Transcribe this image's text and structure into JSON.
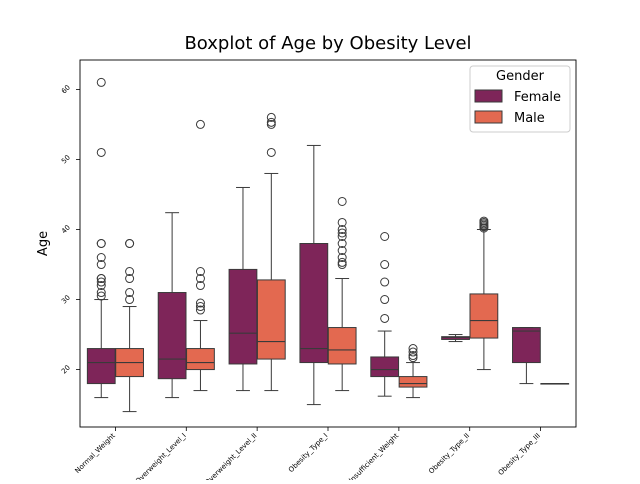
{
  "chart_data": {
    "type": "boxplot",
    "title": "Boxplot of Age by Obesity Level",
    "xlabel": "",
    "ylabel": "Age",
    "ylim": [
      11.8,
      64.2
    ],
    "yticks": [
      20,
      30,
      40,
      50,
      60
    ],
    "categories": [
      "Normal_Weight",
      "Overweight_Level_I",
      "Overweight_Level_II",
      "Obesity_Type_I",
      "Insufficient_Weight",
      "Obesity_Type_II",
      "Obesity_Type_III"
    ],
    "legend": {
      "title": "Gender",
      "placement": "top-right"
    },
    "series": [
      {
        "name": "Female",
        "color": "#7e2559",
        "boxes": [
          {
            "whislo": 16.0,
            "q1": 18.0,
            "med": 21.0,
            "q3": 23.0,
            "whishi": 30.0,
            "fliers": [
              61,
              51,
              38,
              38,
              36,
              35,
              33,
              33,
              32.5,
              32,
              31,
              30.5
            ]
          },
          {
            "whislo": 16.0,
            "q1": 18.7,
            "med": 21.5,
            "q3": 31.0,
            "whishi": 42.4,
            "fliers": []
          },
          {
            "whislo": 17.0,
            "q1": 20.8,
            "med": 25.2,
            "q3": 34.3,
            "whishi": 46.0,
            "fliers": []
          },
          {
            "whislo": 15.0,
            "q1": 21.0,
            "med": 23.0,
            "q3": 38.0,
            "whishi": 52.0,
            "fliers": []
          },
          {
            "whislo": 16.2,
            "q1": 19.0,
            "med": 20.0,
            "q3": 21.8,
            "whishi": 25.5,
            "fliers": [
              39,
              35,
              32.5,
              30,
              27.3
            ]
          },
          {
            "whislo": 24.0,
            "q1": 24.3,
            "med": 24.6,
            "q3": 24.7,
            "whishi": 25.0,
            "fliers": []
          },
          {
            "whislo": 18.0,
            "q1": 21.0,
            "med": 25.5,
            "q3": 26.0,
            "whishi": 26.0,
            "fliers": []
          }
        ]
      },
      {
        "name": "Male",
        "color": "#e36950",
        "boxes": [
          {
            "whislo": 14.0,
            "q1": 19.0,
            "med": 21.0,
            "q3": 23.0,
            "whishi": 29.0,
            "fliers": [
              38,
              38,
              34,
              33,
              31,
              30
            ]
          },
          {
            "whislo": 17.0,
            "q1": 20.0,
            "med": 21.0,
            "q3": 23.0,
            "whishi": 27.0,
            "fliers": [
              55,
              34,
              33,
              32,
              29.5,
              29,
              28.5
            ]
          },
          {
            "whislo": 17.0,
            "q1": 21.5,
            "med": 24.0,
            "q3": 32.8,
            "whishi": 48.0,
            "fliers": [
              56,
              55.3,
              55,
              51
            ]
          },
          {
            "whislo": 17.0,
            "q1": 20.8,
            "med": 22.8,
            "q3": 26.0,
            "whishi": 33.0,
            "fliers": [
              44,
              41,
              40,
              39.5,
              39,
              38,
              37,
              36,
              35.3,
              35
            ]
          },
          {
            "whislo": 16.0,
            "q1": 17.5,
            "med": 18.0,
            "q3": 19.0,
            "whishi": 21.0,
            "fliers": [
              23,
              22.5,
              22,
              21.7
            ]
          },
          {
            "whislo": 20.0,
            "q1": 24.5,
            "med": 27.0,
            "q3": 30.8,
            "whishi": 40.0,
            "fliers": [
              41.2,
              41.0,
              40.8,
              40.6,
              40.4,
              40.2
            ]
          },
          {
            "whislo": 18.0,
            "q1": 18.0,
            "med": 18.0,
            "q3": 18.0,
            "whishi": 18.0,
            "fliers": []
          }
        ]
      }
    ],
    "grid": false
  }
}
